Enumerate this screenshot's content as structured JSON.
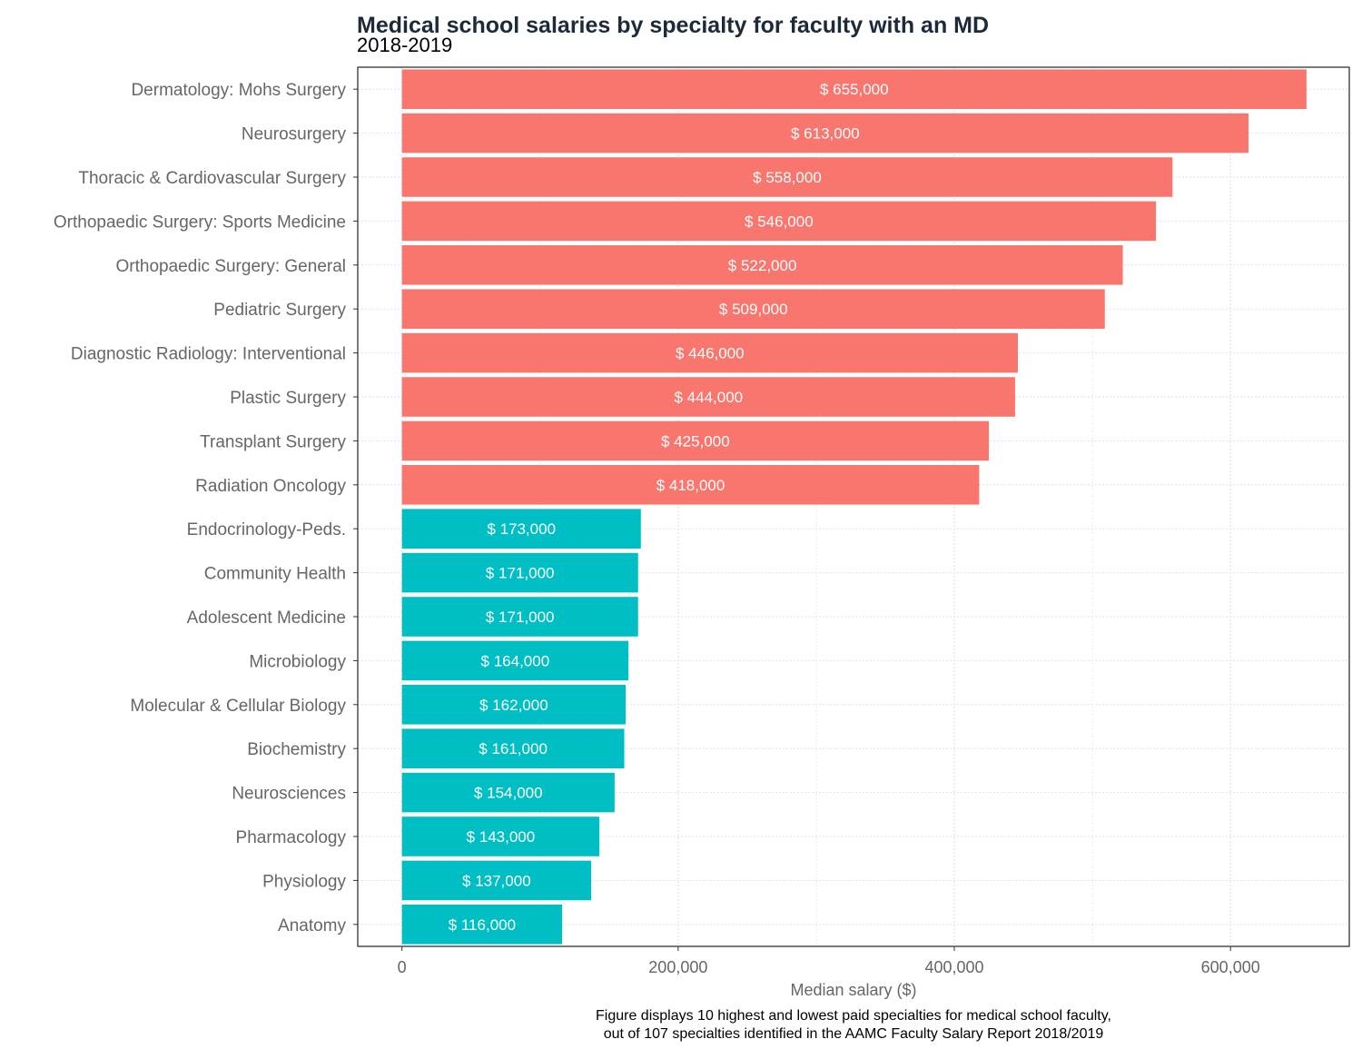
{
  "chart_data": {
    "type": "bar",
    "orientation": "horizontal",
    "title": "Medical school salaries by specialty for faculty with an MD",
    "subtitle": "2018-2019",
    "xlabel": "Median salary ($)",
    "ylabel": "",
    "caption_lines": [
      "Figure displays 10 highest and lowest paid specialties for medical school faculty,",
      "out of 107 specialties identified in the AAMC Faculty Salary Report 2018/2019"
    ],
    "xlim": [
      -32000,
      686000
    ],
    "x_ticks": [
      0,
      200000,
      400000,
      600000
    ],
    "x_tick_labels": [
      "0",
      "200,000",
      "400,000",
      "600,000"
    ],
    "grid": true,
    "legend": "none",
    "colors": {
      "top": "#f8766d",
      "bottom": "#00bfc4"
    },
    "categories": [
      "Dermatology: Mohs Surgery",
      "Neurosurgery",
      "Thoracic & Cardiovascular Surgery",
      "Orthopaedic Surgery: Sports Medicine",
      "Orthopaedic Surgery: General",
      "Pediatric Surgery",
      "Diagnostic Radiology: Interventional",
      "Plastic Surgery",
      "Transplant Surgery",
      "Radiation Oncology",
      "Endocrinology-Peds.",
      "Community Health",
      "Adolescent Medicine",
      "Microbiology",
      "Molecular & Cellular Biology",
      "Biochemistry",
      "Neurosciences",
      "Pharmacology",
      "Physiology",
      "Anatomy"
    ],
    "values": [
      655000,
      613000,
      558000,
      546000,
      522000,
      509000,
      446000,
      444000,
      425000,
      418000,
      173000,
      171000,
      171000,
      164000,
      162000,
      161000,
      154000,
      143000,
      137000,
      116000
    ],
    "groups": [
      "top",
      "top",
      "top",
      "top",
      "top",
      "top",
      "top",
      "top",
      "top",
      "top",
      "bottom",
      "bottom",
      "bottom",
      "bottom",
      "bottom",
      "bottom",
      "bottom",
      "bottom",
      "bottom",
      "bottom"
    ],
    "value_labels": [
      "$ 655,000",
      "$ 613,000",
      "$ 558,000",
      "$ 546,000",
      "$ 522,000",
      "$ 509,000",
      "$ 446,000",
      "$ 444,000",
      "$ 425,000",
      "$ 418,000",
      "$ 173,000",
      "$ 171,000",
      "$ 171,000",
      "$ 164,000",
      "$ 162,000",
      "$ 161,000",
      "$ 154,000",
      "$ 143,000",
      "$ 137,000",
      "$ 116,000"
    ]
  }
}
